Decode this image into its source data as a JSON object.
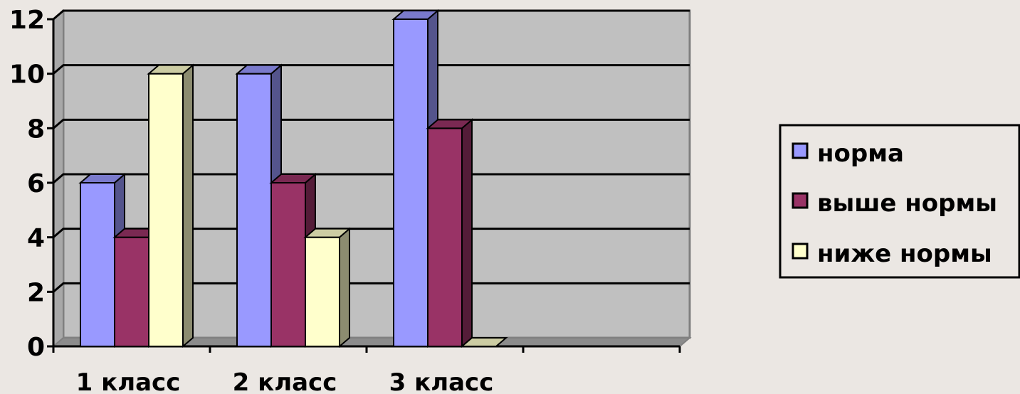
{
  "chart_data": {
    "type": "bar",
    "style": "3d-clustered-column",
    "title": "",
    "xlabel": "",
    "ylabel": "",
    "categories": [
      "1 класс",
      "2 класс",
      "3 класс",
      ""
    ],
    "series": [
      {
        "name": "норма",
        "values": [
          6,
          10,
          12,
          null
        ],
        "color": "#9999ff"
      },
      {
        "name": "выше нормы",
        "values": [
          4,
          6,
          8,
          null
        ],
        "color": "#993366"
      },
      {
        "name": "ниже нормы",
        "values": [
          10,
          4,
          0,
          null
        ],
        "color": "#ffffcc"
      }
    ],
    "ylim": [
      0,
      12
    ],
    "yticks": [
      "0",
      "2",
      "4",
      "6",
      "8",
      "10",
      "12"
    ],
    "grid": true,
    "legend_position": "right",
    "plot_background": "#c0c0c0",
    "page_background": "#ebe7e3"
  }
}
